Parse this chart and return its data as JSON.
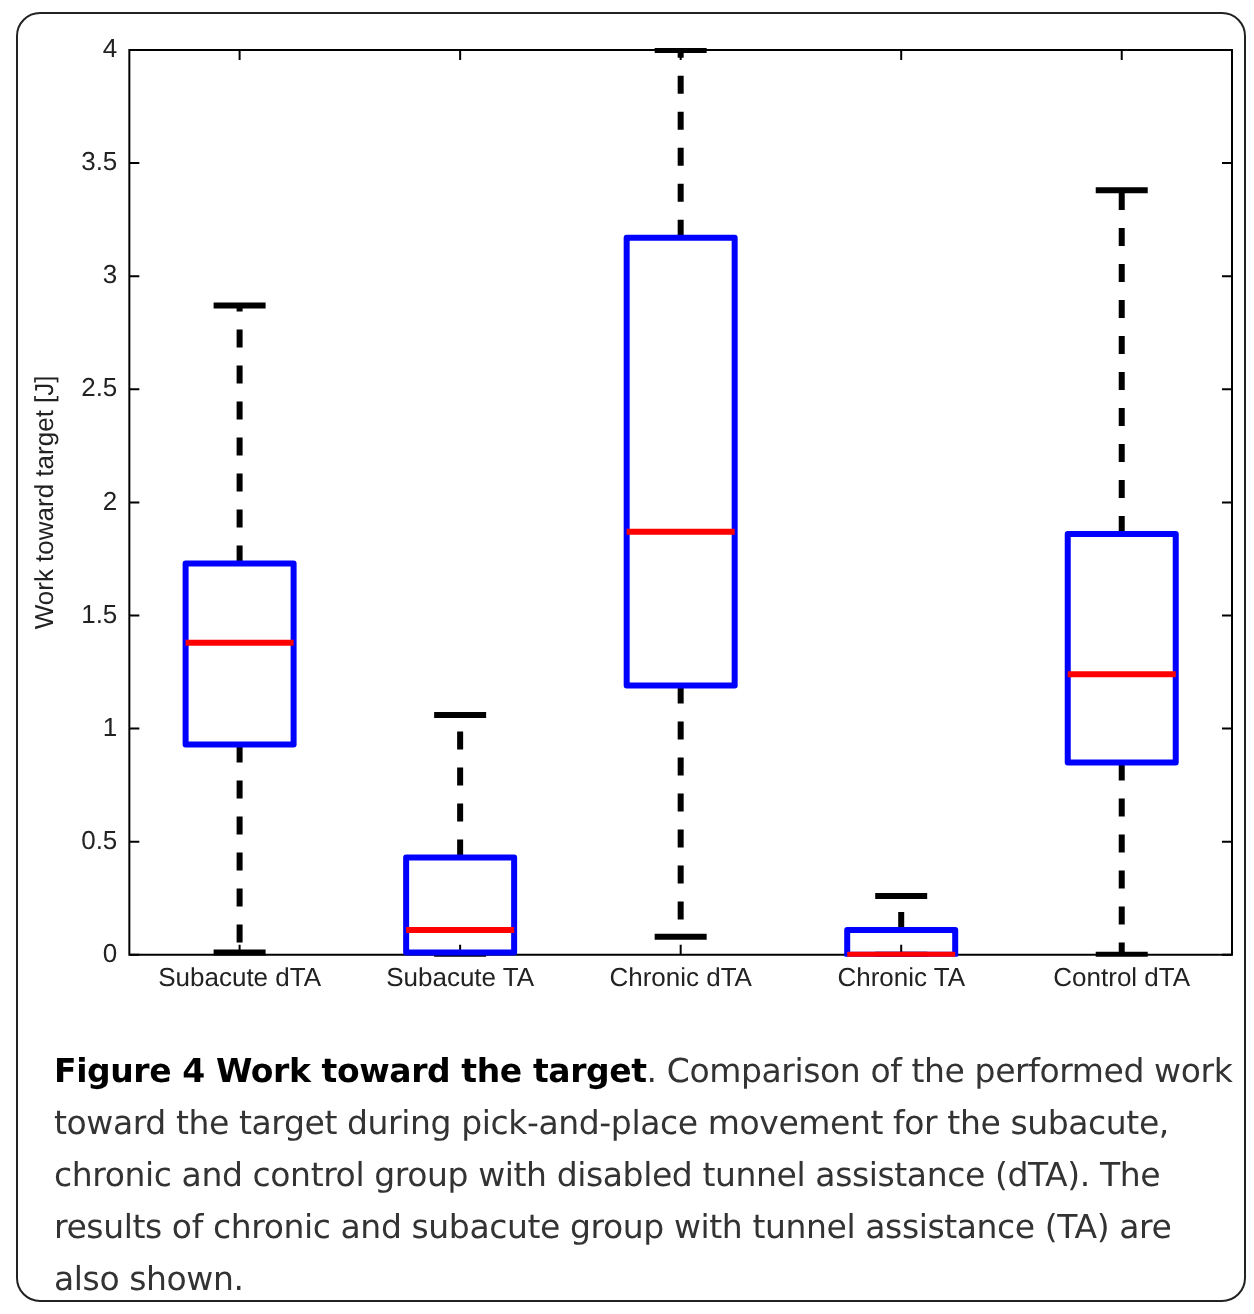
{
  "chart_data": {
    "type": "box",
    "ylabel": "Work toward target [J]",
    "title": "Figure 4 Work toward the target",
    "annotations": [
      ". Comparison of the performed work toward the target during pick-and-place movement for the subacute, chronic and control group with disabled tunnel assistance (dTA). The results of chronic and subacute group with tunnel assistance (TA) are also shown."
    ],
    "categories": [
      "Subacute dTA",
      "Subacute TA",
      "Chronic dTA",
      "Chronic TA",
      "Control dTA"
    ],
    "color": "#0000ff",
    "boxes": [
      {
        "low": 0.01,
        "q1": 0.93,
        "median": 1.38,
        "q3": 1.73,
        "high": 2.87
      },
      {
        "low": 0,
        "q1": 0.01,
        "median": 0.11,
        "q3": 0.43,
        "high": 1.06
      },
      {
        "low": 0.08,
        "q1": 1.19,
        "median": 1.87,
        "q3": 3.17,
        "high": 4
      },
      {
        "low": 0,
        "q1": 0,
        "median": 0,
        "q3": 0.11,
        "high": 0.26
      },
      {
        "low": 0,
        "q1": 0.85,
        "median": 1.24,
        "q3": 1.86,
        "high": 3.38
      }
    ],
    "ylim": [
      0,
      4
    ],
    "yticks": [
      0,
      0.5,
      1,
      1.5,
      2,
      2.5,
      3,
      3.5,
      4
    ],
    "grid": false,
    "legend": false
  }
}
